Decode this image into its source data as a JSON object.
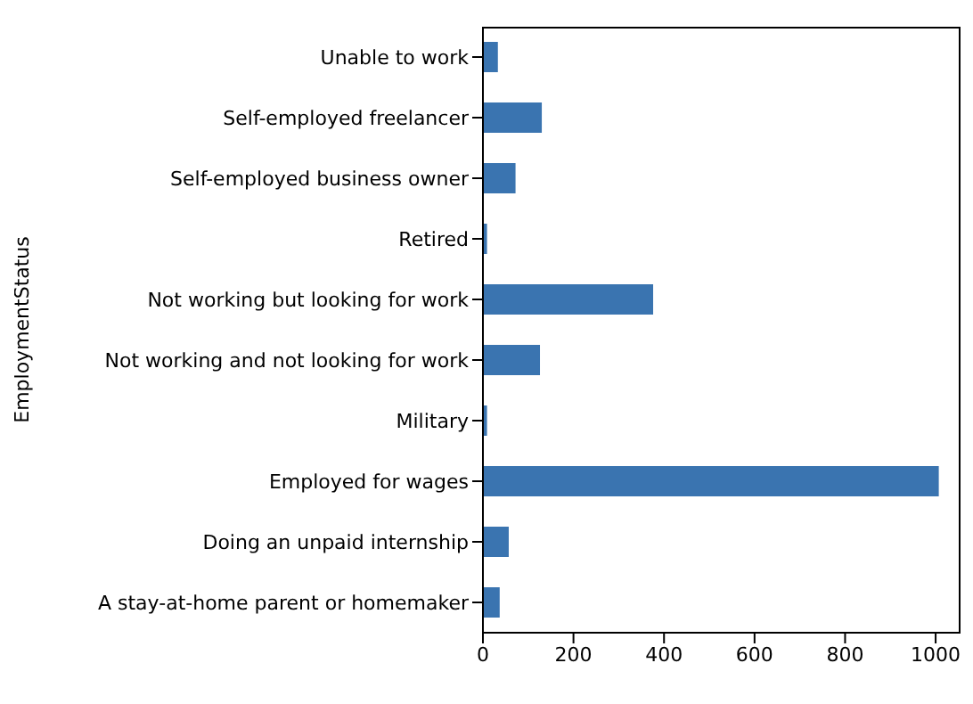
{
  "chart_data": {
    "type": "bar",
    "orientation": "horizontal",
    "ylabel": "EmploymentStatus",
    "categories": [
      "Unable to work",
      "Self-employed freelancer",
      "Self-employed business owner",
      "Retired",
      "Not working but looking for work",
      "Not working and not looking for work",
      "Military",
      "Employed for wages",
      "Doing an unpaid internship",
      "A stay-at-home parent or homemaker"
    ],
    "values": [
      33,
      130,
      72,
      9,
      376,
      126,
      9,
      1007,
      57,
      37
    ],
    "color": "#3a74b0",
    "xlim": [
      0,
      1055
    ],
    "xticks": [
      0,
      200,
      400,
      600,
      800,
      1000
    ]
  }
}
